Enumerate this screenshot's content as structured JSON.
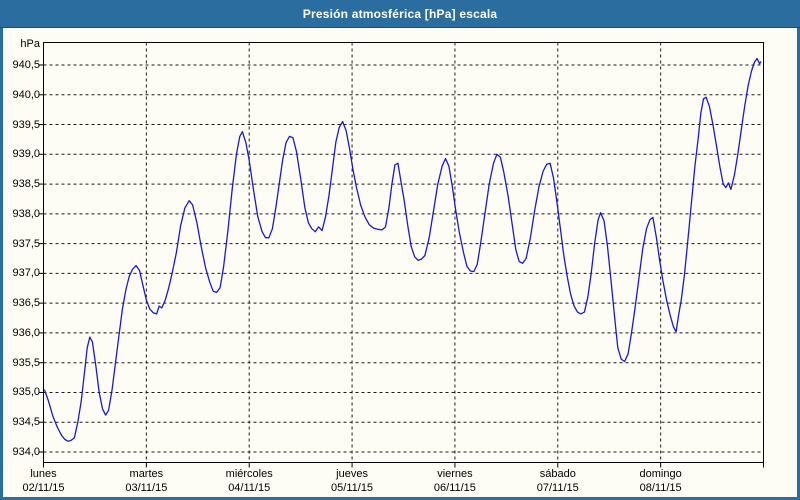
{
  "window": {
    "title": "Presión atmosférica [hPa] escala"
  },
  "colors": {
    "titlebar": "#2a6d9e",
    "line": "#1a1acd",
    "grid": "#1a1a1a",
    "axis": "#000000",
    "background": "#fdfdf6"
  },
  "chart_data": {
    "type": "line",
    "title": "Presión atmosférica [hPa] escala",
    "ylabel_unit": "hPa",
    "grid": "dashed",
    "legend": "none",
    "y_axis": {
      "min": 934.0,
      "max": 940.5,
      "tick_step": 0.5,
      "tick_labels": [
        "940,5",
        "940,0",
        "939,5",
        "939,0",
        "938,5",
        "938,0",
        "937,5",
        "937,0",
        "936,5",
        "936,0",
        "935,5",
        "935,0",
        "934,5",
        "934,0"
      ]
    },
    "x_axis": {
      "hours_total": 168,
      "days": [
        {
          "name": "lunes",
          "date": "02/11/15"
        },
        {
          "name": "martes",
          "date": "03/11/15"
        },
        {
          "name": "miércoles",
          "date": "04/11/15"
        },
        {
          "name": "jueves",
          "date": "05/11/15"
        },
        {
          "name": "viernes",
          "date": "06/11/15"
        },
        {
          "name": "sábado",
          "date": "07/11/15"
        },
        {
          "name": "domingo",
          "date": "08/11/15"
        }
      ]
    },
    "series": [
      {
        "name": "Presión atmosférica",
        "unit": "hPa",
        "points": [
          [
            0.2,
            935.05
          ],
          [
            1.2,
            934.85
          ],
          [
            2.2,
            934.6
          ],
          [
            3.2,
            934.42
          ],
          [
            4.2,
            934.28
          ],
          [
            5.0,
            934.21
          ],
          [
            5.8,
            934.18
          ],
          [
            6.5,
            934.2
          ],
          [
            7.2,
            934.24
          ],
          [
            8.0,
            934.5
          ],
          [
            8.8,
            934.85
          ],
          [
            9.6,
            935.35
          ],
          [
            10.2,
            935.75
          ],
          [
            10.8,
            935.93
          ],
          [
            11.4,
            935.85
          ],
          [
            12.2,
            935.45
          ],
          [
            13.0,
            935.0
          ],
          [
            13.8,
            934.72
          ],
          [
            14.5,
            934.62
          ],
          [
            15.2,
            934.7
          ],
          [
            16.0,
            935.05
          ],
          [
            16.8,
            935.5
          ],
          [
            17.6,
            935.95
          ],
          [
            18.4,
            936.4
          ],
          [
            19.2,
            936.72
          ],
          [
            20.0,
            936.95
          ],
          [
            20.8,
            937.07
          ],
          [
            21.6,
            937.13
          ],
          [
            22.4,
            937.05
          ],
          [
            23.2,
            936.8
          ],
          [
            24.0,
            936.55
          ],
          [
            24.8,
            936.4
          ],
          [
            25.6,
            936.34
          ],
          [
            26.4,
            936.32
          ],
          [
            27.0,
            936.45
          ],
          [
            27.6,
            936.42
          ],
          [
            28.4,
            936.55
          ],
          [
            29.2,
            936.75
          ],
          [
            30.0,
            937.0
          ],
          [
            31.0,
            937.35
          ],
          [
            32.0,
            937.8
          ],
          [
            33.0,
            938.1
          ],
          [
            34.0,
            938.22
          ],
          [
            34.8,
            938.15
          ],
          [
            35.8,
            937.85
          ],
          [
            36.8,
            937.45
          ],
          [
            37.8,
            937.1
          ],
          [
            38.8,
            936.85
          ],
          [
            39.6,
            936.7
          ],
          [
            40.4,
            936.68
          ],
          [
            41.2,
            936.76
          ],
          [
            42.0,
            937.1
          ],
          [
            43.0,
            937.7
          ],
          [
            44.0,
            938.4
          ],
          [
            45.0,
            939.0
          ],
          [
            45.8,
            939.3
          ],
          [
            46.4,
            939.38
          ],
          [
            47.2,
            939.2
          ],
          [
            48.0,
            938.9
          ],
          [
            49.0,
            938.4
          ],
          [
            50.0,
            937.95
          ],
          [
            51.0,
            937.7
          ],
          [
            51.8,
            937.6
          ],
          [
            52.6,
            937.6
          ],
          [
            53.4,
            937.75
          ],
          [
            54.2,
            938.1
          ],
          [
            55.0,
            938.5
          ],
          [
            55.8,
            938.9
          ],
          [
            56.6,
            939.2
          ],
          [
            57.4,
            939.3
          ],
          [
            58.2,
            939.28
          ],
          [
            59.0,
            939.05
          ],
          [
            60.0,
            938.6
          ],
          [
            61.0,
            938.1
          ],
          [
            61.8,
            937.85
          ],
          [
            62.6,
            937.75
          ],
          [
            63.4,
            937.7
          ],
          [
            64.2,
            937.78
          ],
          [
            65.0,
            937.72
          ],
          [
            65.8,
            937.95
          ],
          [
            66.6,
            938.3
          ],
          [
            67.4,
            938.75
          ],
          [
            68.2,
            939.2
          ],
          [
            69.0,
            939.45
          ],
          [
            69.8,
            939.55
          ],
          [
            70.6,
            939.4
          ],
          [
            71.4,
            939.1
          ],
          [
            72.2,
            938.75
          ],
          [
            73.0,
            938.45
          ],
          [
            74.0,
            938.15
          ],
          [
            75.0,
            937.95
          ],
          [
            76.0,
            937.82
          ],
          [
            77.0,
            937.76
          ],
          [
            78.0,
            937.74
          ],
          [
            79.0,
            937.73
          ],
          [
            79.8,
            937.78
          ],
          [
            80.6,
            938.1
          ],
          [
            81.3,
            938.5
          ],
          [
            82.0,
            938.82
          ],
          [
            82.7,
            938.85
          ],
          [
            83.4,
            938.55
          ],
          [
            84.2,
            938.2
          ],
          [
            85.0,
            937.8
          ],
          [
            85.8,
            937.45
          ],
          [
            86.6,
            937.28
          ],
          [
            87.4,
            937.22
          ],
          [
            88.2,
            937.24
          ],
          [
            89.0,
            937.3
          ],
          [
            90.0,
            937.6
          ],
          [
            91.0,
            938.05
          ],
          [
            92.0,
            938.5
          ],
          [
            93.0,
            938.8
          ],
          [
            93.8,
            938.93
          ],
          [
            94.6,
            938.8
          ],
          [
            95.4,
            938.45
          ],
          [
            96.2,
            938.05
          ],
          [
            97.0,
            937.7
          ],
          [
            98.0,
            937.35
          ],
          [
            98.8,
            937.12
          ],
          [
            99.6,
            937.04
          ],
          [
            100.4,
            937.03
          ],
          [
            101.2,
            937.15
          ],
          [
            102.0,
            937.5
          ],
          [
            103.0,
            938.0
          ],
          [
            104.0,
            938.5
          ],
          [
            105.0,
            938.85
          ],
          [
            105.8,
            939.0
          ],
          [
            106.6,
            938.95
          ],
          [
            107.4,
            938.7
          ],
          [
            108.4,
            938.3
          ],
          [
            109.4,
            937.8
          ],
          [
            110.2,
            937.4
          ],
          [
            111.0,
            937.2
          ],
          [
            111.8,
            937.17
          ],
          [
            112.6,
            937.25
          ],
          [
            113.6,
            937.6
          ],
          [
            114.6,
            938.05
          ],
          [
            115.6,
            938.45
          ],
          [
            116.6,
            938.72
          ],
          [
            117.4,
            938.83
          ],
          [
            118.2,
            938.85
          ],
          [
            119.0,
            938.6
          ],
          [
            119.8,
            938.2
          ],
          [
            120.6,
            937.75
          ],
          [
            121.4,
            937.3
          ],
          [
            122.2,
            936.95
          ],
          [
            123.0,
            936.65
          ],
          [
            123.8,
            936.45
          ],
          [
            124.6,
            936.35
          ],
          [
            125.4,
            936.32
          ],
          [
            126.2,
            936.35
          ],
          [
            127.0,
            936.6
          ],
          [
            127.8,
            937.0
          ],
          [
            128.6,
            937.5
          ],
          [
            129.4,
            937.9
          ],
          [
            130.0,
            938.02
          ],
          [
            130.8,
            937.88
          ],
          [
            131.6,
            937.45
          ],
          [
            132.4,
            936.9
          ],
          [
            133.2,
            936.3
          ],
          [
            134.0,
            935.75
          ],
          [
            134.8,
            935.56
          ],
          [
            135.6,
            935.52
          ],
          [
            136.4,
            935.65
          ],
          [
            137.2,
            936.0
          ],
          [
            138.0,
            936.4
          ],
          [
            138.9,
            936.9
          ],
          [
            139.8,
            937.4
          ],
          [
            140.7,
            937.75
          ],
          [
            141.5,
            937.9
          ],
          [
            142.2,
            937.94
          ],
          [
            143.0,
            937.6
          ],
          [
            143.8,
            937.2
          ],
          [
            144.6,
            936.85
          ],
          [
            145.4,
            936.55
          ],
          [
            146.2,
            936.3
          ],
          [
            147.0,
            936.1
          ],
          [
            147.6,
            936.02
          ],
          [
            148.2,
            936.3
          ],
          [
            148.8,
            936.55
          ],
          [
            149.6,
            937.0
          ],
          [
            150.4,
            937.6
          ],
          [
            151.2,
            938.2
          ],
          [
            152.0,
            938.8
          ],
          [
            152.8,
            939.3
          ],
          [
            153.4,
            939.7
          ],
          [
            154.0,
            939.93
          ],
          [
            154.6,
            939.96
          ],
          [
            155.4,
            939.8
          ],
          [
            156.2,
            939.5
          ],
          [
            157.0,
            939.15
          ],
          [
            157.8,
            938.8
          ],
          [
            158.6,
            938.5
          ],
          [
            159.2,
            938.44
          ],
          [
            159.8,
            938.52
          ],
          [
            160.4,
            938.41
          ],
          [
            161.2,
            938.65
          ],
          [
            162.0,
            939.0
          ],
          [
            162.8,
            939.4
          ],
          [
            163.6,
            939.8
          ],
          [
            164.4,
            940.15
          ],
          [
            165.2,
            940.4
          ],
          [
            165.9,
            940.55
          ],
          [
            166.5,
            940.61
          ],
          [
            167.1,
            940.52
          ],
          [
            167.4,
            940.56
          ]
        ]
      }
    ]
  }
}
